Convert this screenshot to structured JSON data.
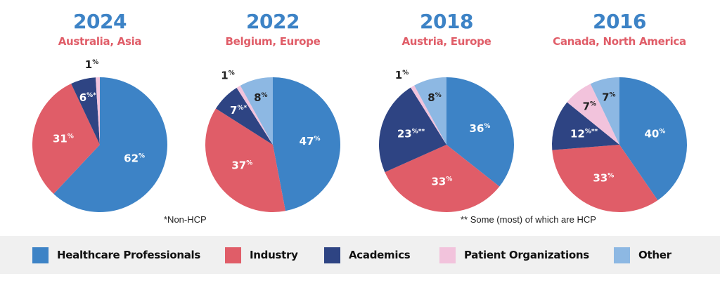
{
  "colors": {
    "year": "#3d83c6",
    "location": "#e05d68",
    "Healthcare Professionals": "#3d83c6",
    "Industry": "#e05d68",
    "Academics": "#2e4483",
    "Patient Organizations": "#f2c3dc",
    "Other": "#8db8e3"
  },
  "chart_data": [
    {
      "type": "pie",
      "title": "2024",
      "subtitle": "Australia, Asia",
      "slices": [
        {
          "name": "Healthcare Professionals",
          "value": 62,
          "label": "62",
          "suffix": ""
        },
        {
          "name": "Industry",
          "value": 31,
          "label": "31",
          "suffix": ""
        },
        {
          "name": "Academics",
          "value": 6,
          "label": "6",
          "suffix": "*"
        },
        {
          "name": "Patient Organizations",
          "value": 1,
          "label": "1",
          "suffix": ""
        }
      ]
    },
    {
      "type": "pie",
      "title": "2022",
      "subtitle": "Belgium, Europe",
      "slices": [
        {
          "name": "Healthcare Professionals",
          "value": 47,
          "label": "47",
          "suffix": ""
        },
        {
          "name": "Industry",
          "value": 37,
          "label": "37",
          "suffix": ""
        },
        {
          "name": "Academics",
          "value": 7,
          "label": "7",
          "suffix": "*"
        },
        {
          "name": "Patient Organizations",
          "value": 1,
          "label": "1",
          "suffix": ""
        },
        {
          "name": "Other",
          "value": 8,
          "label": "8",
          "suffix": ""
        }
      ]
    },
    {
      "type": "pie",
      "title": "2018",
      "subtitle": "Austria, Europe",
      "slices": [
        {
          "name": "Healthcare Professionals",
          "value": 36,
          "label": "36",
          "suffix": ""
        },
        {
          "name": "Industry",
          "value": 33,
          "label": "33",
          "suffix": ""
        },
        {
          "name": "Academics",
          "value": 23,
          "label": "23",
          "suffix": "**"
        },
        {
          "name": "Patient Organizations",
          "value": 1,
          "label": "1",
          "suffix": ""
        },
        {
          "name": "Other",
          "value": 8,
          "label": "8",
          "suffix": ""
        }
      ]
    },
    {
      "type": "pie",
      "title": "2016",
      "subtitle": "Canada, North America",
      "slices": [
        {
          "name": "Healthcare Professionals",
          "value": 40,
          "label": "40",
          "suffix": ""
        },
        {
          "name": "Industry",
          "value": 33,
          "label": "33",
          "suffix": ""
        },
        {
          "name": "Academics",
          "value": 12,
          "label": "12",
          "suffix": "**"
        },
        {
          "name": "Patient Organizations",
          "value": 7,
          "label": "7",
          "suffix": ""
        },
        {
          "name": "Other",
          "value": 7,
          "label": "7",
          "suffix": ""
        }
      ]
    }
  ],
  "percent_sign": "%",
  "notes": {
    "non_hcp": "*Non-HCP",
    "some_hcp": "** Some (most) of which are HCP"
  },
  "legend": {
    "placement": "bottom",
    "items": [
      {
        "label": "Healthcare Professionals"
      },
      {
        "label": "Industry"
      },
      {
        "label": "Academics"
      },
      {
        "label": "Patient Organizations"
      },
      {
        "label": "Other"
      }
    ]
  }
}
